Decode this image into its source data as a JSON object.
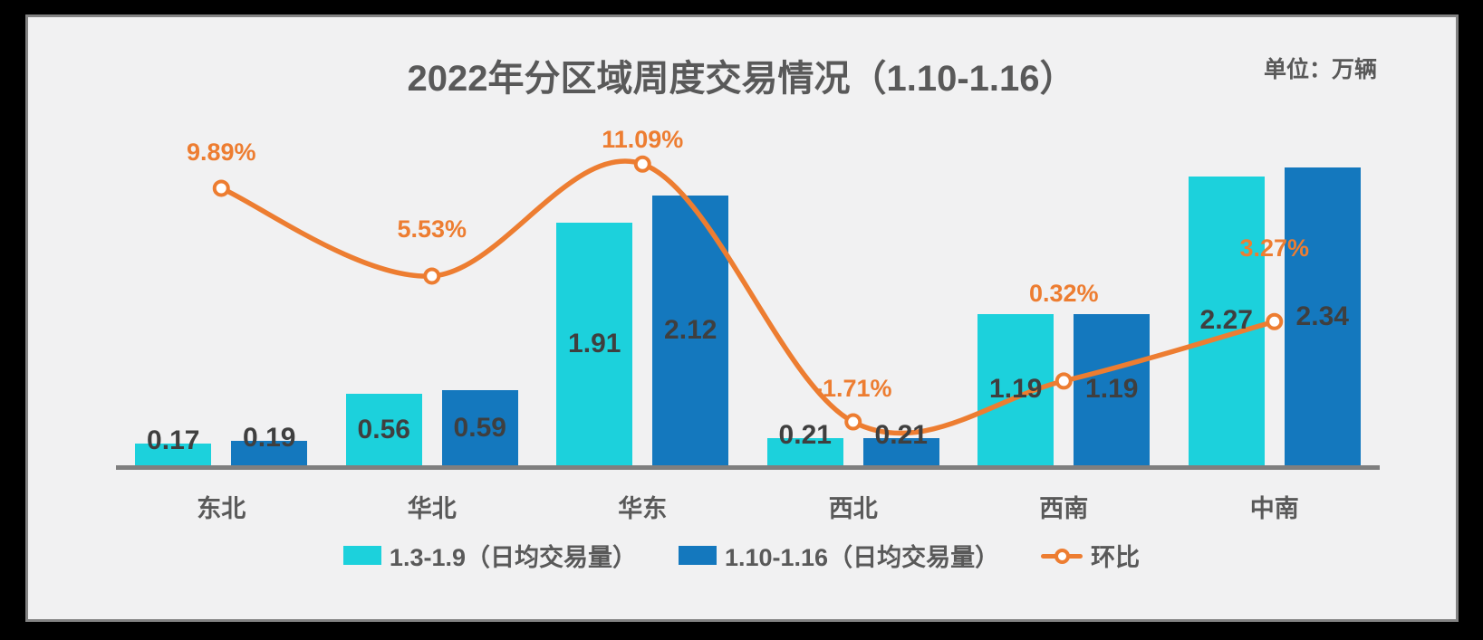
{
  "title": "2022年分区域周度交易情况（1.10-1.16）",
  "unit_label": "单位：万辆",
  "colors": {
    "background_outer": "#000000",
    "panel_background": "#F1F1F2",
    "panel_border": "#828282",
    "axis_line": "#7F7F7F",
    "bar_week1": "#1CD1DC",
    "bar_week2": "#1478BE",
    "trend_line": "#ED7D31",
    "title_text": "#595959",
    "value_text": "#3F3F3F"
  },
  "chart_data": {
    "type": "bar",
    "subtype": "grouped bars with overlaid smooth line (secondary % axis)",
    "title": "2022年分区域周度交易情况（1.10-1.16）",
    "unit": "单位：万辆",
    "categories": [
      "东北",
      "华北",
      "华东",
      "西北",
      "西南",
      "中南"
    ],
    "series": [
      {
        "name": "1.3-1.9（日均交易量）",
        "type": "bar",
        "color": "#1CD1DC",
        "values": [
          0.17,
          0.56,
          1.91,
          0.21,
          1.19,
          2.27
        ]
      },
      {
        "name": "1.10-1.16（日均交易量）",
        "type": "bar",
        "color": "#1478BE",
        "values": [
          0.19,
          0.59,
          2.12,
          0.21,
          1.19,
          2.34
        ]
      },
      {
        "name": "环比",
        "type": "line",
        "color": "#ED7D31",
        "values": [
          9.89,
          5.53,
          11.09,
          -1.71,
          0.32,
          3.27
        ],
        "labels": [
          "9.89%",
          "5.53%",
          "11.09%",
          "-1.71%",
          "0.32%",
          "3.27%"
        ]
      }
    ],
    "layout_hints": {
      "grid": false,
      "axes_visible": "x only",
      "legend_position": "bottom center",
      "bar_value_labels": "inside middle (above bar when bar is very short)",
      "line_point_labels": "above markers, orange"
    }
  },
  "legend": {
    "items": [
      "1.3-1.9（日均交易量）",
      "1.10-1.16（日均交易量）",
      "环比"
    ]
  }
}
